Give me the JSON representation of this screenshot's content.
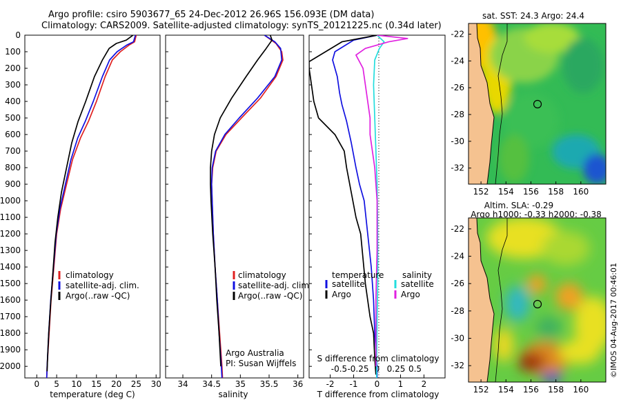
{
  "header": {
    "line1": "Argo profile: csiro 5903677_65 24-Dec-2012 26.96S 156.093E (DM data)",
    "line2": "Climatology: CARS2009. Satellite-adjusted climatology: synTS_20121225.nc (0.34d later)"
  },
  "colors": {
    "climatology": "#e02020",
    "satellite": "#1010e0",
    "argo": "#000000",
    "cyan": "#22dddd",
    "magenta": "#e020e0"
  },
  "chart_data": [
    {
      "type": "line",
      "title": "",
      "xlabel": "temperature (deg C)",
      "ylabel": "",
      "xlim": [
        -3,
        31
      ],
      "ylim": [
        2070,
        0
      ],
      "xticks": [
        0,
        5,
        10,
        15,
        20,
        25,
        30
      ],
      "yticks": [
        0,
        100,
        200,
        300,
        400,
        500,
        600,
        700,
        800,
        900,
        1000,
        1100,
        1200,
        1300,
        1400,
        1500,
        1600,
        1700,
        1800,
        1900,
        2000
      ],
      "legend": [
        "climatology",
        "satellite-adj. clim.",
        "Argo(..raw -QC)"
      ],
      "series": [
        {
          "name": "climatology",
          "color": "#e02020",
          "points": [
            [
              25.0,
              0
            ],
            [
              24.6,
              40
            ],
            [
              23.2,
              60
            ],
            [
              21.0,
              100
            ],
            [
              19.0,
              150
            ],
            [
              17.2,
              250
            ],
            [
              15.0,
              400
            ],
            [
              13.0,
              520
            ],
            [
              11.0,
              620
            ],
            [
              9.0,
              750
            ],
            [
              7.5,
              900
            ],
            [
              6.0,
              1050
            ],
            [
              5.0,
              1200
            ],
            [
              4.3,
              1400
            ],
            [
              3.6,
              1600
            ],
            [
              3.1,
              1800
            ],
            [
              2.6,
              2000
            ],
            [
              2.5,
              2070
            ]
          ]
        },
        {
          "name": "satellite-adj. clim.",
          "color": "#1010e0",
          "points": [
            [
              24.8,
              0
            ],
            [
              24.3,
              40
            ],
            [
              22.6,
              60
            ],
            [
              20.2,
              100
            ],
            [
              18.3,
              150
            ],
            [
              16.5,
              250
            ],
            [
              14.2,
              400
            ],
            [
              12.2,
              520
            ],
            [
              10.3,
              620
            ],
            [
              8.6,
              750
            ],
            [
              7.2,
              900
            ],
            [
              5.8,
              1050
            ],
            [
              4.9,
              1200
            ],
            [
              4.2,
              1400
            ],
            [
              3.5,
              1600
            ],
            [
              3.0,
              1800
            ],
            [
              2.6,
              2000
            ],
            [
              2.5,
              2070
            ]
          ]
        },
        {
          "name": "Argo(..raw -QC)",
          "color": "#000000",
          "points": [
            [
              24.2,
              0
            ],
            [
              22.5,
              30
            ],
            [
              20.0,
              50
            ],
            [
              18.2,
              80
            ],
            [
              16.5,
              150
            ],
            [
              14.5,
              250
            ],
            [
              12.3,
              400
            ],
            [
              10.4,
              520
            ],
            [
              8.8,
              650
            ],
            [
              7.5,
              800
            ],
            [
              6.2,
              950
            ],
            [
              5.3,
              1100
            ],
            [
              4.6,
              1250
            ],
            [
              4.0,
              1450
            ],
            [
              3.4,
              1650
            ],
            [
              3.0,
              1800
            ],
            [
              2.7,
              1950
            ],
            [
              2.6,
              2030
            ]
          ]
        }
      ]
    },
    {
      "type": "line",
      "title": "",
      "xlabel": "salinity",
      "xlim": [
        33.7,
        36.1
      ],
      "ylim": [
        2070,
        0
      ],
      "xticks": [
        34,
        34.5,
        35,
        35.5,
        36
      ],
      "xticklabels": [
        "34",
        "34.5",
        "35",
        "35.5",
        "36"
      ],
      "legend": [
        "climatology",
        "satellite-adj. clim.",
        "Argo(..raw -QC)"
      ],
      "annotations": [
        "Argo Australia",
        "PI: Susan Wijffels"
      ],
      "series": [
        {
          "name": "climatology",
          "color": "#e02020",
          "points": [
            [
              35.42,
              0
            ],
            [
              35.62,
              50
            ],
            [
              35.72,
              100
            ],
            [
              35.74,
              150
            ],
            [
              35.62,
              250
            ],
            [
              35.35,
              380
            ],
            [
              35.02,
              500
            ],
            [
              34.75,
              600
            ],
            [
              34.58,
              700
            ],
            [
              34.52,
              800
            ],
            [
              34.5,
              900
            ],
            [
              34.51,
              1000
            ],
            [
              34.53,
              1200
            ],
            [
              34.56,
              1400
            ],
            [
              34.6,
              1600
            ],
            [
              34.64,
              1800
            ],
            [
              34.68,
              2000
            ],
            [
              34.69,
              2070
            ]
          ]
        },
        {
          "name": "satellite-adj. clim.",
          "color": "#1010e0",
          "points": [
            [
              35.42,
              0
            ],
            [
              35.6,
              40
            ],
            [
              35.7,
              80
            ],
            [
              35.72,
              150
            ],
            [
              35.6,
              250
            ],
            [
              35.3,
              380
            ],
            [
              34.98,
              500
            ],
            [
              34.73,
              600
            ],
            [
              34.57,
              700
            ],
            [
              34.51,
              800
            ],
            [
              34.5,
              900
            ],
            [
              34.51,
              1000
            ],
            [
              34.53,
              1200
            ],
            [
              34.56,
              1400
            ],
            [
              34.6,
              1600
            ],
            [
              34.63,
              1800
            ],
            [
              34.67,
              2000
            ],
            [
              34.68,
              2070
            ]
          ]
        },
        {
          "name": "Argo(..raw -QC)",
          "color": "#000000",
          "points": [
            [
              35.52,
              0
            ],
            [
              35.55,
              30
            ],
            [
              35.45,
              80
            ],
            [
              35.3,
              150
            ],
            [
              35.1,
              250
            ],
            [
              34.85,
              380
            ],
            [
              34.65,
              500
            ],
            [
              34.55,
              600
            ],
            [
              34.5,
              700
            ],
            [
              34.48,
              800
            ],
            [
              34.48,
              900
            ],
            [
              34.49,
              1000
            ],
            [
              34.52,
              1200
            ],
            [
              34.56,
              1400
            ],
            [
              34.59,
              1600
            ],
            [
              34.63,
              1800
            ],
            [
              34.66,
              2000
            ]
          ]
        }
      ]
    },
    {
      "type": "line",
      "title": "",
      "xlabel": "T difference from climatology",
      "top_xlabel": "S difference from climatology",
      "xlim": [
        -2.9,
        2.9
      ],
      "ylim": [
        2070,
        0
      ],
      "xticks": [
        -2,
        -1,
        0,
        1,
        2
      ],
      "top_ticks": [
        -0.5,
        -0.25,
        0,
        0.25,
        0.5
      ],
      "top_ticklabels": [
        "-0.5",
        "-0.25",
        "0",
        "0.25",
        "0.5"
      ],
      "legend_headers": [
        "temperature",
        "salinity"
      ],
      "legend": [
        "satellite",
        "Argo",
        "satellite",
        "Argo"
      ],
      "series": [
        {
          "name": "temperature satellite",
          "color": "#1010e0",
          "points": [
            [
              0.0,
              0
            ],
            [
              -1.0,
              30
            ],
            [
              -1.8,
              100
            ],
            [
              -1.9,
              150
            ],
            [
              -1.7,
              250
            ],
            [
              -1.6,
              350
            ],
            [
              -1.5,
              420
            ],
            [
              -1.3,
              520
            ],
            [
              -1.1,
              650
            ],
            [
              -0.9,
              800
            ],
            [
              -0.75,
              900
            ],
            [
              -0.55,
              1000
            ],
            [
              -0.4,
              1200
            ],
            [
              -0.25,
              1400
            ],
            [
              -0.15,
              1600
            ],
            [
              -0.1,
              1800
            ],
            [
              0.0,
              2000
            ],
            [
              0.0,
              2070
            ]
          ]
        },
        {
          "name": "temperature Argo",
          "color": "#000000",
          "points": [
            [
              0.0,
              0
            ],
            [
              -1.5,
              40
            ],
            [
              -2.9,
              160
            ],
            [
              -2.9,
              200
            ],
            [
              -2.7,
              400
            ],
            [
              -2.5,
              500
            ],
            [
              -1.8,
              600
            ],
            [
              -1.4,
              700
            ],
            [
              -1.3,
              800
            ],
            [
              -1.1,
              950
            ],
            [
              -0.9,
              1100
            ],
            [
              -0.7,
              1200
            ],
            [
              -0.6,
              1350
            ],
            [
              -0.5,
              1500
            ],
            [
              -0.3,
              1700
            ],
            [
              -0.15,
              1800
            ],
            [
              -0.1,
              1950
            ],
            [
              -0.05,
              2050
            ]
          ]
        },
        {
          "name": "salinity satellite",
          "color": "#22dddd",
          "points": [
            [
              0.0,
              0
            ],
            [
              0.3,
              40
            ],
            [
              0.1,
              80
            ],
            [
              -0.1,
              150
            ],
            [
              -0.15,
              300
            ],
            [
              -0.1,
              500
            ],
            [
              -0.05,
              700
            ],
            [
              0.0,
              900
            ],
            [
              0.02,
              1100
            ],
            [
              0.03,
              1300
            ],
            [
              0.03,
              1500
            ],
            [
              0.0,
              1700
            ],
            [
              -0.02,
              2000
            ],
            [
              -0.02,
              2070
            ]
          ]
        },
        {
          "name": "salinity Argo",
          "color": "#e020e0",
          "points": [
            [
              0.0,
              0
            ],
            [
              1.3,
              20
            ],
            [
              0.5,
              40
            ],
            [
              -0.5,
              80
            ],
            [
              -0.9,
              120
            ],
            [
              -0.6,
              200
            ],
            [
              -0.5,
              300
            ],
            [
              -0.4,
              400
            ],
            [
              -0.3,
              500
            ],
            [
              -0.3,
              600
            ],
            [
              -0.2,
              700
            ],
            [
              -0.1,
              800
            ],
            [
              0.0,
              1000
            ],
            [
              0.0,
              1300
            ],
            [
              -0.05,
              1600
            ],
            [
              -0.05,
              2000
            ]
          ]
        }
      ]
    },
    {
      "type": "heatmap",
      "title": "sat. SST: 24.3 Argo: 24.4",
      "xlim": [
        151,
        162
      ],
      "ylim": [
        -33.2,
        -21.2
      ],
      "xticks": [
        152,
        154,
        156,
        158,
        160
      ],
      "yticks": [
        -22,
        -24,
        -26,
        -28,
        -30,
        -32
      ],
      "argo_position": [
        156.1,
        -26.96
      ]
    },
    {
      "type": "heatmap",
      "title": "Altim. SLA: -0.29",
      "subtitle": "Argo h1000: -0.33 h2000: -0.38",
      "xlim": [
        151,
        162
      ],
      "ylim": [
        -33.2,
        -21.2
      ],
      "xticks": [
        152,
        154,
        156,
        158,
        160
      ],
      "yticks": [
        -22,
        -24,
        -26,
        -28,
        -30,
        -32
      ],
      "argo_position": [
        156.1,
        -26.96
      ]
    }
  ],
  "timestamp": "©IMOS 04-Aug-2017 00:46:01"
}
